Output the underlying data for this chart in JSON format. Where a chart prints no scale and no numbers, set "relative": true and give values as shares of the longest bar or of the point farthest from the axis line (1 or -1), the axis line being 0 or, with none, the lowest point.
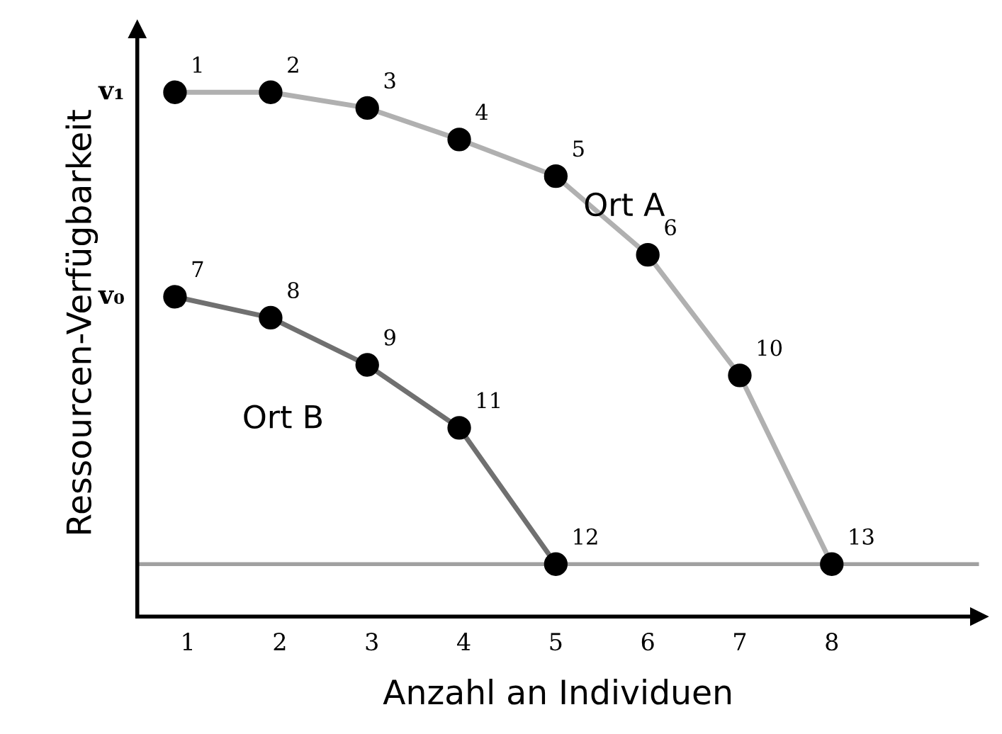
{
  "chart_data": {
    "type": "line",
    "xlabel": "Anzahl an Individuen",
    "ylabel": "Ressourcen-Verfügbarkeit",
    "xlim": [
      0.45,
      9.6
    ],
    "xticks": [
      1,
      2,
      3,
      4,
      5,
      6,
      7,
      8
    ],
    "relative": true,
    "grid": false,
    "legend": false,
    "marker": "circle",
    "line_style": "solid",
    "series": [
      {
        "name": "Ort A",
        "color": "#b0b0b0",
        "x": [
          0.86,
          1.9,
          2.95,
          3.95,
          5,
          6,
          7,
          8
        ],
        "values": [
          1,
          1,
          0.97,
          0.91,
          0.84,
          0.69,
          0.46,
          0.1
        ]
      },
      {
        "name": "Ort B",
        "color": "#707070",
        "x": [
          0.86,
          1.9,
          2.95,
          3.95,
          5
        ],
        "values": [
          0.61,
          0.57,
          0.48,
          0.36,
          0.1
        ]
      }
    ],
    "ref_lines": [
      {
        "axis": "y",
        "value": 0.1,
        "color": "#a0a0a0"
      }
    ],
    "annotations": [
      "v₁",
      "v₀",
      {
        "text": "1",
        "x": 0.86,
        "y": 1
      },
      {
        "text": "2",
        "x": 1.9,
        "y": 1
      },
      {
        "text": "3",
        "x": 2.95,
        "y": 0.97
      },
      {
        "text": "4",
        "x": 3.95,
        "y": 0.91
      },
      {
        "text": "5",
        "x": 5,
        "y": 0.84
      },
      {
        "text": "6",
        "x": 6,
        "y": 0.69
      },
      {
        "text": "7",
        "x": 0.86,
        "y": 0.61
      },
      {
        "text": "8",
        "x": 1.9,
        "y": 0.57
      },
      {
        "text": "9",
        "x": 2.95,
        "y": 0.48
      },
      {
        "text": "10",
        "x": 7,
        "y": 0.46
      },
      {
        "text": "11",
        "x": 3.95,
        "y": 0.36
      },
      {
        "text": "12",
        "x": 5,
        "y": 0.1
      },
      {
        "text": "13",
        "x": 8,
        "y": 0.1
      }
    ]
  }
}
